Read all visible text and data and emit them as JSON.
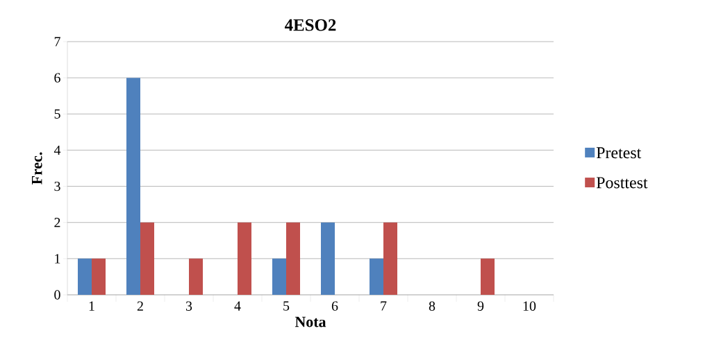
{
  "chart_data": {
    "type": "bar",
    "title": "4ESO2",
    "xlabel": "Nota",
    "ylabel": "Frec.",
    "categories": [
      "1",
      "2",
      "3",
      "4",
      "5",
      "6",
      "7",
      "8",
      "9",
      "10"
    ],
    "series": [
      {
        "name": "Pretest",
        "color": "#4f81bd",
        "values": [
          1,
          6,
          0,
          0,
          1,
          2,
          1,
          0,
          0,
          0
        ]
      },
      {
        "name": "Posttest",
        "color": "#c0504d",
        "values": [
          1,
          2,
          1,
          2,
          2,
          0,
          2,
          0,
          1,
          0
        ]
      }
    ],
    "ylim": [
      0,
      7
    ],
    "yticks": [
      0,
      1,
      2,
      3,
      4,
      5,
      6,
      7
    ],
    "grid": "y",
    "legend": "right"
  }
}
